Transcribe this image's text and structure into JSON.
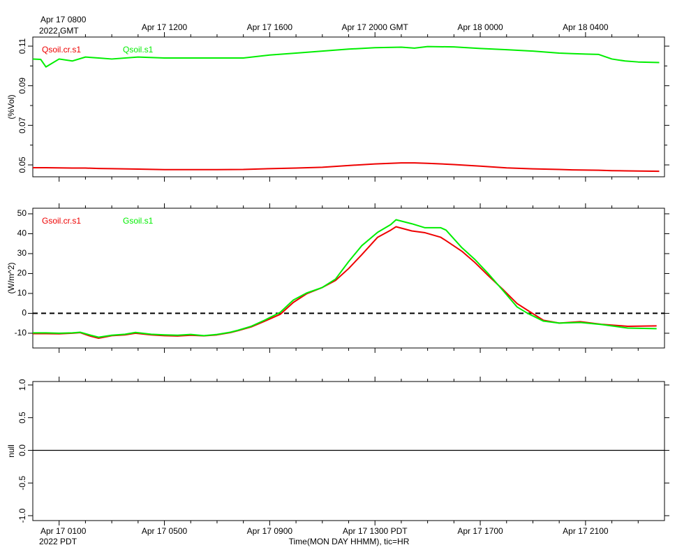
{
  "time_axis": {
    "xlim": [
      0,
      24
    ],
    "major": [
      1,
      5,
      9,
      13,
      17,
      21
    ],
    "minor": [
      2,
      3,
      4,
      6,
      7,
      8,
      10,
      11,
      12,
      14,
      15,
      16,
      18,
      19,
      20,
      22,
      23
    ],
    "top_labels": [
      {
        "value": 1,
        "label": "Apr 17 0800"
      },
      {
        "value": 5,
        "label": "Apr 17 1200"
      },
      {
        "value": 9,
        "label": "Apr 17 1600"
      },
      {
        "value": 13,
        "label": "Apr 17 2000 GMT"
      },
      {
        "value": 17,
        "label": "Apr 18 0000"
      },
      {
        "value": 21,
        "label": "Apr 18 0400"
      }
    ],
    "top_year": "2022 GMT",
    "bottom_labels": [
      {
        "value": 1,
        "label": "Apr 17 0100"
      },
      {
        "value": 5,
        "label": "Apr 17 0500"
      },
      {
        "value": 9,
        "label": "Apr 17 0900"
      },
      {
        "value": 13,
        "label": "Apr 17 1300 PDT"
      },
      {
        "value": 17,
        "label": "Apr 17 1700"
      },
      {
        "value": 21,
        "label": "Apr 17 2100"
      }
    ],
    "bottom_year": "2022 PDT",
    "xlabel": "Time(MON DAY HHMM), tic=HR"
  },
  "chart_data": [
    {
      "type": "line",
      "ylabel": "(%Vol)",
      "ylim": [
        0.044,
        0.1146
      ],
      "yticks": [
        0.05,
        0.07,
        0.09,
        0.11
      ],
      "yminorticks": [
        0.06,
        0.08,
        0.1
      ],
      "ytick_rotate": true,
      "x": [
        0,
        0.3,
        0.5,
        1,
        1.5,
        2,
        2.5,
        3,
        4,
        5,
        6,
        7,
        8,
        9,
        10,
        11,
        12,
        13,
        14,
        14.5,
        15,
        16,
        17,
        18,
        19,
        20,
        20.5,
        21,
        21.5,
        22,
        22.5,
        23,
        23.8
      ],
      "series": [
        {
          "name": "Qsoil.cr.s1",
          "color": "#ee0000",
          "values": [
            0.0486,
            0.0486,
            0.0486,
            0.0485,
            0.0484,
            0.0484,
            0.0482,
            0.0481,
            0.0479,
            0.0476,
            0.0476,
            0.0476,
            0.0477,
            0.0481,
            0.0484,
            0.0488,
            0.0497,
            0.0505,
            0.051,
            0.051,
            0.0508,
            0.0502,
            0.0494,
            0.0485,
            0.048,
            0.0477,
            0.0475,
            0.0474,
            0.0473,
            0.0471,
            0.047,
            0.0469,
            0.0468
          ]
        },
        {
          "name": "Qsoil.s1",
          "color": "#00ee00",
          "values": [
            0.1035,
            0.1033,
            0.0995,
            0.1035,
            0.1025,
            0.1045,
            0.104,
            0.1035,
            0.1045,
            0.104,
            0.104,
            0.104,
            0.104,
            0.1055,
            0.1065,
            0.1075,
            0.1085,
            0.1092,
            0.1095,
            0.109,
            0.1098,
            0.1096,
            0.1088,
            0.1082,
            0.1075,
            0.1065,
            0.1062,
            0.106,
            0.1058,
            0.1035,
            0.1025,
            0.102,
            0.1017
          ]
        }
      ]
    },
    {
      "type": "line",
      "ylabel": "(W/m^2)",
      "ylim": [
        -17.4,
        52.8
      ],
      "yticks": [
        -10,
        0,
        10,
        20,
        30,
        40,
        50
      ],
      "hline": 0,
      "hline_style": "dashed",
      "x": [
        0,
        0.5,
        1,
        1.5,
        1.8,
        2.2,
        2.5,
        3,
        3.5,
        3.9,
        4.5,
        5,
        5.5,
        6,
        6.5,
        7,
        7.5,
        7.8,
        8.3,
        8.8,
        9.4,
        9.9,
        10.4,
        11,
        11.5,
        12,
        12.5,
        13.1,
        13.6,
        13.8,
        14.4,
        14.9,
        15.5,
        15.7,
        16.3,
        16.8,
        17.3,
        17.9,
        18.4,
        18.8,
        19.4,
        20,
        20.8,
        21.6,
        22.6,
        23.7
      ],
      "series": [
        {
          "name": "Gsoil.cr.s1",
          "color": "#ee0000",
          "values": [
            -10.2,
            -10.2,
            -10.3,
            -10,
            -9.7,
            -11.5,
            -12.5,
            -11.2,
            -10.8,
            -10,
            -10.8,
            -11.2,
            -11.4,
            -11,
            -11.3,
            -10.8,
            -9.7,
            -8.7,
            -6.8,
            -4,
            -0.5,
            5.5,
            9.8,
            13,
            16.5,
            22.5,
            29.5,
            38.2,
            41.8,
            43.5,
            41.4,
            40.5,
            38.2,
            36.5,
            31.2,
            25.5,
            19,
            11.5,
            4.9,
            1.5,
            -3.5,
            -4.9,
            -4.2,
            -5.5,
            -6.5,
            -6.3
          ]
        },
        {
          "name": "Gsoil.s1",
          "color": "#00ee00",
          "values": [
            -9.8,
            -9.8,
            -10,
            -9.8,
            -9.5,
            -11,
            -12,
            -11,
            -10.5,
            -9.6,
            -10.5,
            -10.8,
            -11,
            -10.6,
            -11.2,
            -10.6,
            -9.5,
            -8.5,
            -6.5,
            -3.5,
            0.5,
            6.7,
            10.2,
            13,
            17.2,
            26,
            34,
            40.7,
            44.6,
            47,
            45,
            43,
            43,
            41.8,
            33,
            27,
            20,
            10.9,
            3.2,
            0,
            -3.9,
            -4.9,
            -4.6,
            -5.6,
            -7.4,
            -7.7
          ]
        }
      ]
    },
    {
      "type": "line",
      "ylabel": "null",
      "ylim": [
        -1.075,
        1.053
      ],
      "ytick_rotate": true,
      "yticks": [
        {
          "value": -1,
          "label": "-1.0"
        },
        {
          "value": -0.5,
          "label": "-0.5"
        },
        {
          "value": 0,
          "label": "0.0"
        },
        {
          "value": 0.5,
          "label": "0.5"
        },
        {
          "value": 1,
          "label": "1.0"
        }
      ],
      "hline": 0,
      "hline_style": "solid",
      "x": [],
      "series": []
    }
  ]
}
